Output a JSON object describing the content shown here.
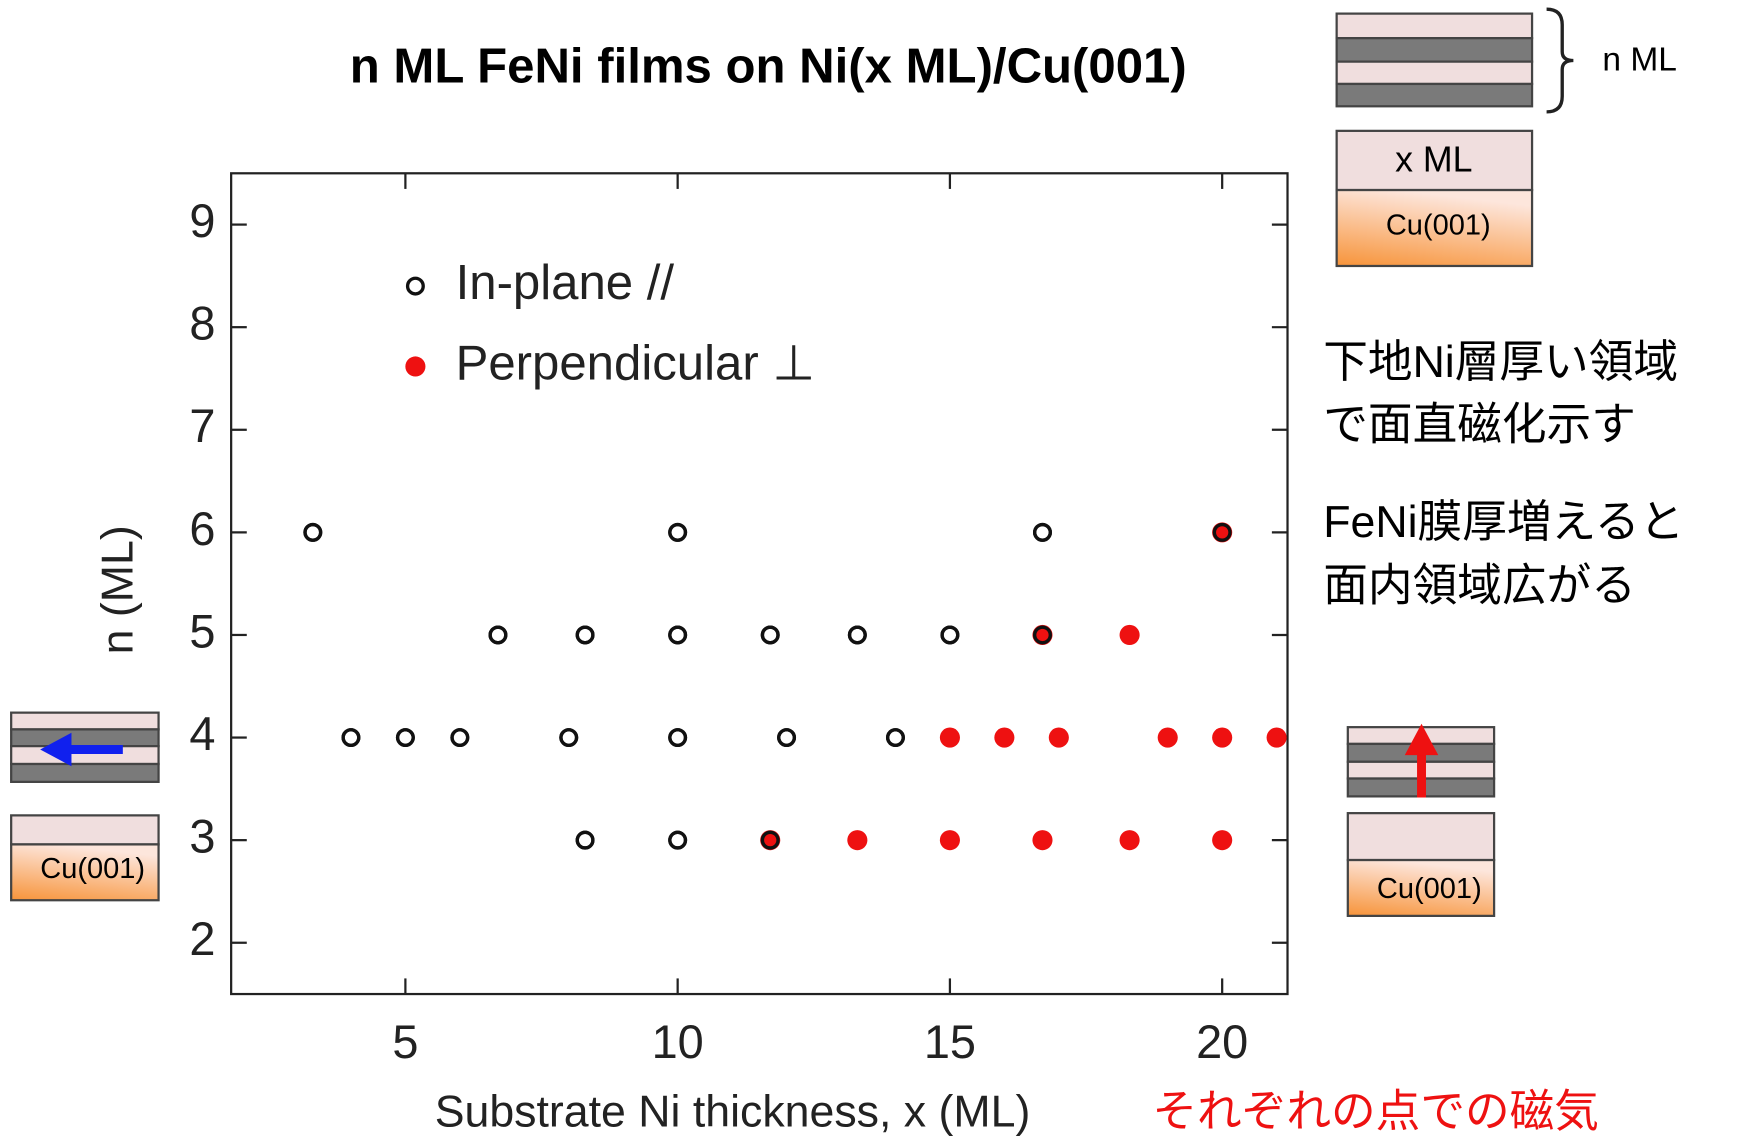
{
  "chart_data": {
    "type": "scatter",
    "title": "n ML FeNi films on Ni(x ML)/Cu(001)",
    "x_label": "Substrate Ni thickness, x (ML)",
    "y_label": "n (ML)",
    "xlim": [
      1.8,
      21.2
    ],
    "xticks": [
      5,
      10,
      15,
      20
    ],
    "ylim": [
      1.5,
      9.5
    ],
    "yticks": [
      2,
      3,
      4,
      5,
      6,
      7,
      8,
      9
    ],
    "series": [
      {
        "name": "In-plane //",
        "color": "#111111",
        "marker": "open",
        "x": [
          3.3,
          10,
          16.7,
          6.7,
          8.3,
          10,
          11.7,
          13.3,
          15,
          16.7,
          4,
          5,
          6,
          8,
          10,
          12,
          14,
          8.3,
          10,
          11.7,
          20
        ],
        "values": [
          6,
          6,
          6,
          5,
          5,
          5,
          5,
          5,
          5,
          5,
          4,
          4,
          4,
          4,
          4,
          4,
          4,
          3,
          3,
          3,
          6
        ]
      },
      {
        "name": "Perpendicular ⊥",
        "color": "#ee1111",
        "marker": "filled",
        "x": [
          20,
          16.7,
          18.3,
          15,
          16,
          17,
          19,
          20,
          21,
          11.7,
          13.3,
          15,
          16.7,
          18.3,
          20
        ],
        "values": [
          6,
          5,
          5,
          4,
          4,
          4,
          4,
          4,
          4,
          3,
          3,
          3,
          3,
          3,
          3
        ]
      }
    ],
    "annotations": [
      "下地Ni層厚い領域",
      "で面直磁化示す",
      "FeNi膜厚増えると",
      "面内領域広がる",
      "それぞれの点での磁気"
    ],
    "diagram_labels": [
      "n ML",
      "x ML",
      "Cu(001)",
      "Cu(001)",
      "Cu(001)"
    ]
  }
}
